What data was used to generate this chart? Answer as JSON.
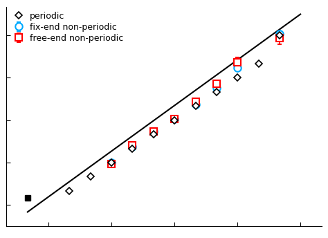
{
  "background_color": "#ffffff",
  "periodic_x": [
    1,
    2,
    3,
    4,
    5,
    6,
    7,
    8,
    9,
    10,
    11
  ],
  "periodic_y": [
    1,
    2,
    3,
    4,
    5,
    6,
    7,
    8,
    9,
    10,
    12
  ],
  "line_x": [
    -1,
    12
  ],
  "line_y": [
    -0.5,
    13.5
  ],
  "fix_end_x": [
    3,
    4,
    5,
    6,
    7,
    8,
    9,
    11
  ],
  "fix_end_y": [
    3.0,
    4.1,
    5.2,
    6.1,
    7.1,
    8.3,
    9.7,
    12.1
  ],
  "fix_end_yerr": [
    0.18,
    0.18,
    0.18,
    0.18,
    0.18,
    0.18,
    0.18,
    0.18
  ],
  "free_end_x": [
    3,
    4,
    5,
    6,
    7,
    8,
    9,
    11
  ],
  "free_end_y": [
    2.9,
    4.2,
    5.2,
    6.1,
    7.3,
    8.6,
    10.1,
    11.8
  ],
  "free_end_yerr": [
    0.18,
    0.18,
    0.18,
    0.18,
    0.18,
    0.18,
    0.35,
    0.45
  ],
  "single_point_x": [
    -1
  ],
  "single_point_y": [
    0.5
  ],
  "xlim": [
    -2,
    13
  ],
  "ylim": [
    -1.5,
    14
  ],
  "periodic_color": "#000000",
  "fix_end_color": "#00aaff",
  "free_end_color": "#ff0000",
  "legend_fontsize": 9,
  "tick_fontsize": 8
}
